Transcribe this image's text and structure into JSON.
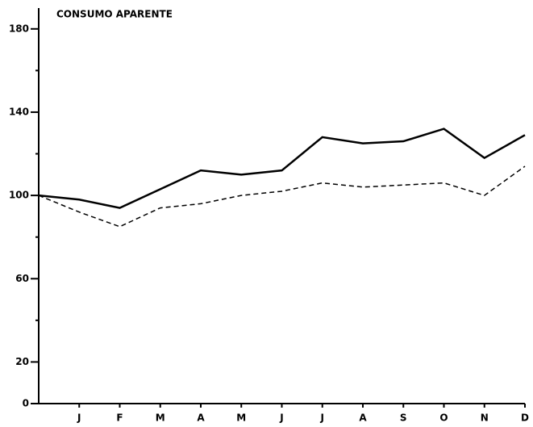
{
  "chart_data": {
    "type": "line",
    "title": "CONSUMO APARENTE",
    "categories": [
      null,
      "J",
      "F",
      "M",
      "A",
      "M",
      "J",
      "J",
      "A",
      "S",
      "O",
      "N",
      "D"
    ],
    "series": [
      {
        "color": "#000000",
        "dash": false,
        "values": [
          100,
          98,
          94,
          103,
          112,
          110,
          112,
          128,
          125,
          126,
          132,
          118,
          129
        ]
      },
      {
        "color": "#000000",
        "dash": true,
        "values": [
          100,
          92,
          85,
          94,
          96,
          100,
          102,
          106,
          104,
          105,
          106,
          100,
          114
        ]
      }
    ],
    "ylim": [
      0,
      190
    ],
    "yticks": [
      0,
      20,
      60,
      100,
      140,
      180
    ],
    "minor_yticks": [
      40,
      80,
      120,
      160
    ],
    "grid": false
  }
}
